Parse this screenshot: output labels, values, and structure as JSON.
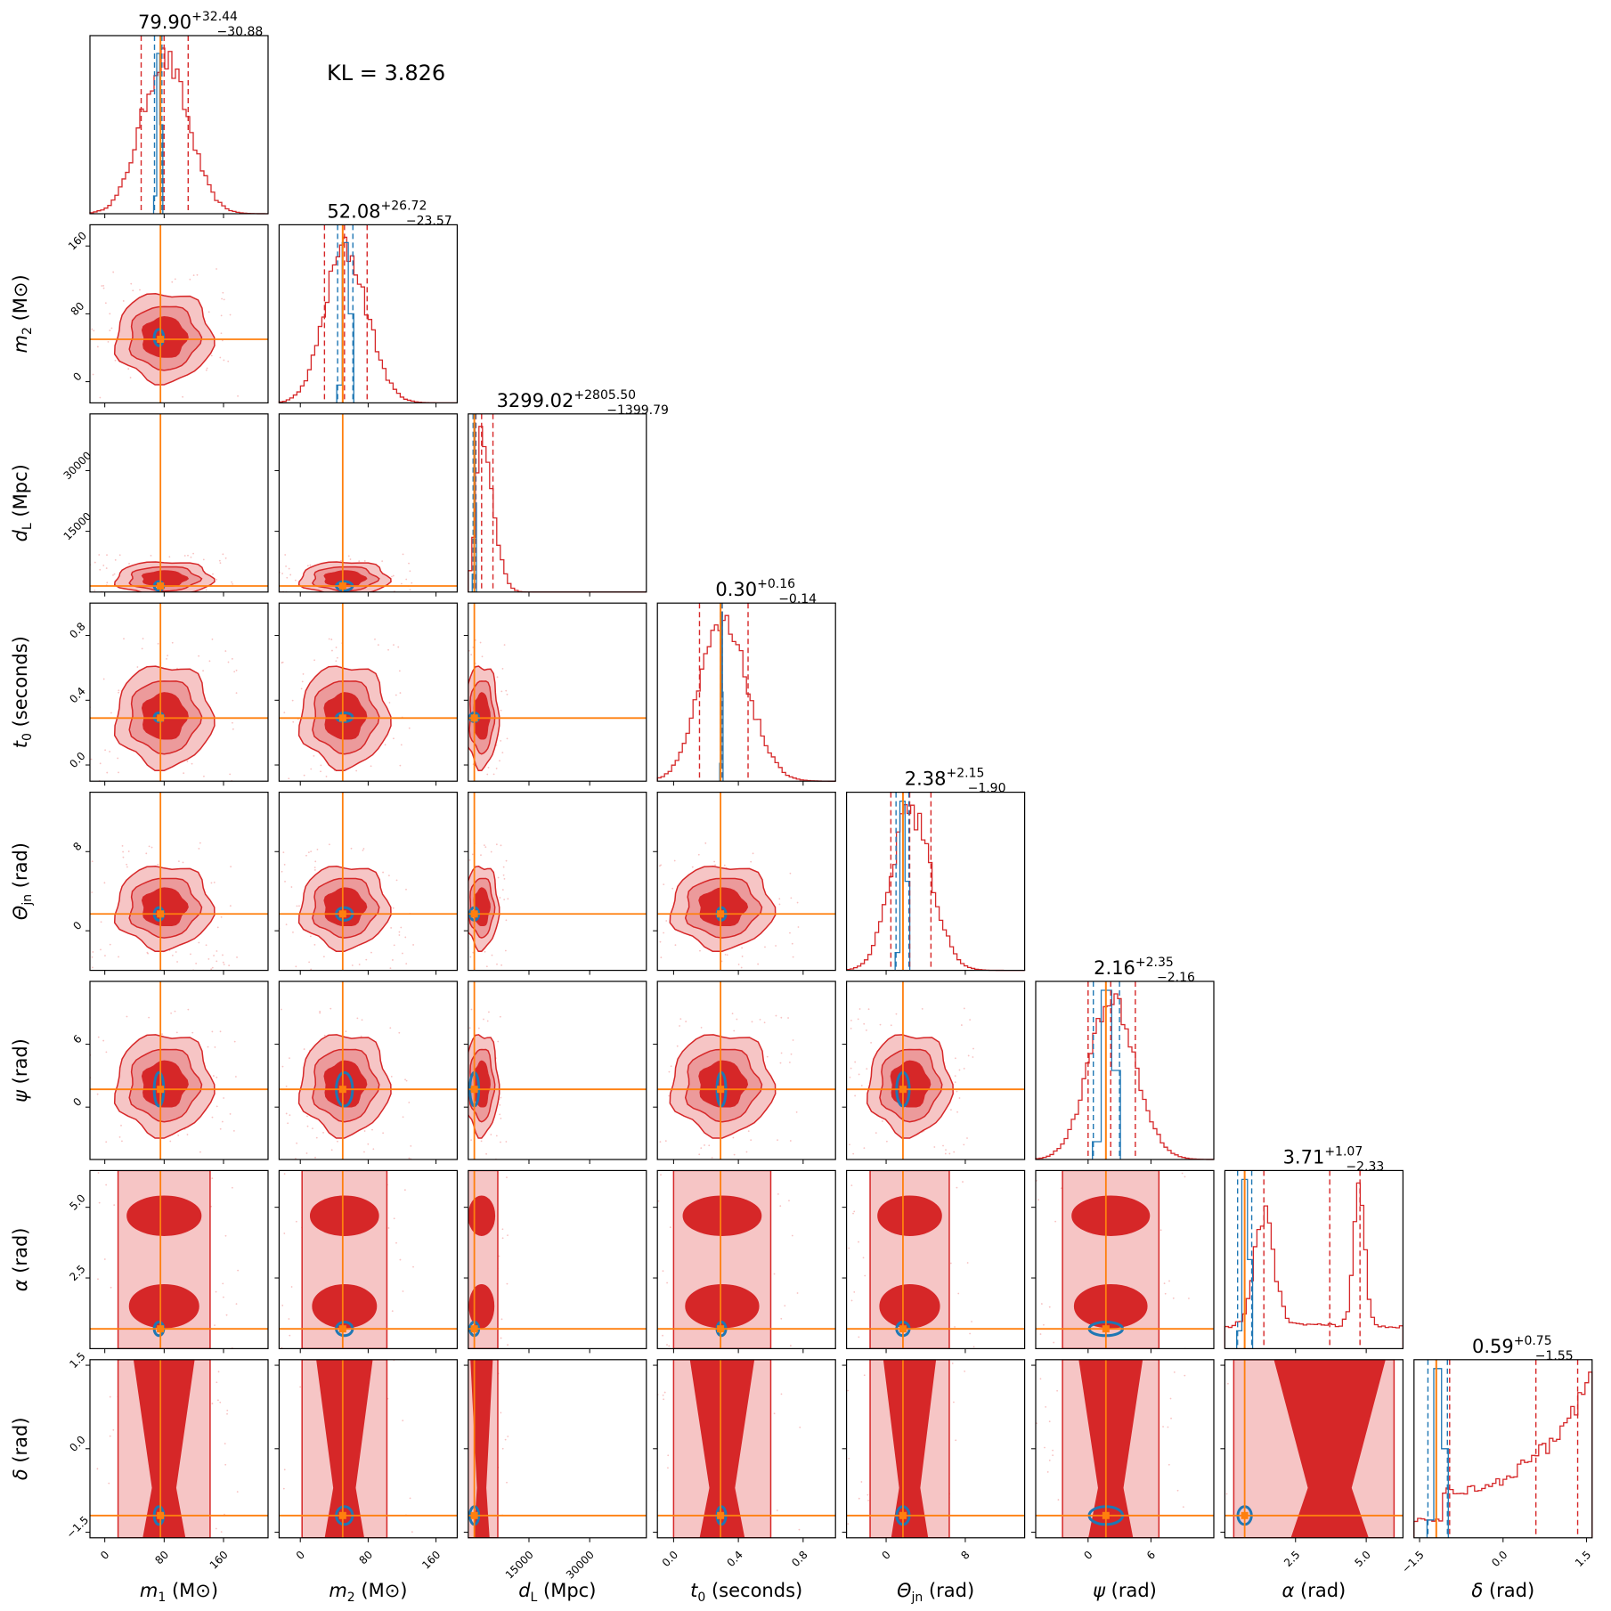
{
  "chart_data": {
    "type": "corner",
    "kl_annotation": "KL = 3.826",
    "colors": {
      "posterior_a": "#d62728",
      "posterior_b": "#1f77b4",
      "truth": "#ff7f0e"
    },
    "parameters": [
      {
        "key": "m1",
        "label_html": "m<tspan font-style='italic'></tspan>",
        "label_main": "m",
        "label_sub": "1",
        "unit": " (M⊙)",
        "title_median": "79.90",
        "title_plus": "+32.44",
        "title_minus": "−30.88",
        "range": [
          -20,
          220
        ],
        "ticks": [
          0,
          80,
          160
        ],
        "tick_labels": [
          "0",
          "80",
          "160"
        ],
        "truth": 75,
        "median_a": 79.9,
        "lo_a": 49.02,
        "hi_a": 112.34,
        "median_b": 73,
        "lo_b": 67,
        "hi_b": 77,
        "sd_a": 31,
        "sd_b": 4
      },
      {
        "key": "m2",
        "label_main": "m",
        "label_sub": "2",
        "unit": " (M⊙)",
        "title_median": "52.08",
        "title_plus": "+26.72",
        "title_minus": "−23.57",
        "range": [
          -25,
          185
        ],
        "ticks": [
          0,
          80,
          160
        ],
        "tick_labels": [
          "0",
          "80",
          "160"
        ],
        "truth": 50,
        "median_a": 52.08,
        "lo_a": 28.51,
        "hi_a": 78.8,
        "median_b": 52,
        "lo_b": 44,
        "hi_b": 62,
        "sd_a": 25,
        "sd_b": 6
      },
      {
        "key": "dL",
        "label_main": "d",
        "label_sub": "L",
        "unit": " (Mpc)",
        "title_median": "3299.02",
        "title_plus": "+2805.50",
        "title_minus": "−1399.79",
        "range": [
          0,
          44000
        ],
        "ticks": [
          15000,
          30000
        ],
        "tick_labels": [
          "15000",
          "30000"
        ],
        "truth": 1500,
        "median_a": 3299.02,
        "lo_a": 1899.23,
        "hi_a": 6104.52,
        "median_b": 1500,
        "lo_b": 1200,
        "hi_b": 1800,
        "sd_a": 2000,
        "sd_b": 200
      },
      {
        "key": "t0",
        "label_main": "t",
        "label_sub": "0",
        "unit": " (seconds)",
        "title_median": "0.30",
        "title_plus": "+0.16",
        "title_minus": "−0.14",
        "range": [
          -0.1,
          1.0
        ],
        "ticks": [
          0.0,
          0.4,
          0.8
        ],
        "tick_labels": [
          "0.0",
          "0.4",
          "0.8"
        ],
        "truth": 0.29,
        "median_a": 0.3,
        "lo_a": 0.16,
        "hi_a": 0.46,
        "median_b": 0.295,
        "lo_b": 0.29,
        "hi_b": 0.3,
        "sd_a": 0.15,
        "sd_b": 0.005
      },
      {
        "key": "thetajn",
        "label_main": "Θ",
        "label_sub": "jn",
        "unit": " (rad)",
        "title_median": "2.38",
        "title_plus": "+2.15",
        "title_minus": "−1.90",
        "range": [
          -4,
          14
        ],
        "ticks": [
          0,
          8
        ],
        "tick_labels": [
          "0",
          "8"
        ],
        "truth": 1.7,
        "median_a": 2.38,
        "lo_a": 0.48,
        "hi_a": 4.53,
        "median_b": 1.7,
        "lo_b": 1.0,
        "hi_b": 2.3,
        "sd_a": 2,
        "sd_b": 0.4
      },
      {
        "key": "psi",
        "label_main": "ψ",
        "label_sub": "",
        "unit": " (rad)",
        "title_median": "2.16",
        "title_plus": "+2.35",
        "title_minus": "−2.16",
        "range": [
          -5,
          12
        ],
        "ticks": [
          0,
          6
        ],
        "tick_labels": [
          "0",
          "6"
        ],
        "truth": 1.7,
        "median_a": 2.16,
        "lo_a": 0.0,
        "hi_a": 4.51,
        "median_b": 1.7,
        "lo_b": 0.5,
        "hi_b": 3.0,
        "sd_a": 2.3,
        "sd_b": 1.0
      },
      {
        "key": "alpha",
        "label_main": "α",
        "label_sub": "",
        "unit": " (rad)",
        "title_median": "3.71",
        "title_plus": "+1.07",
        "title_minus": "−2.33",
        "range": [
          0,
          6.3
        ],
        "ticks": [
          2.5,
          5.0
        ],
        "tick_labels": [
          "2.5",
          "5.0"
        ],
        "truth": 0.7,
        "median_a": 3.71,
        "lo_a": 1.38,
        "hi_a": 4.78,
        "median_b": 0.7,
        "lo_b": 0.45,
        "hi_b": 0.95,
        "sd_a": 1.5,
        "sd_b": 0.15
      },
      {
        "key": "delta",
        "label_main": "δ",
        "label_sub": "",
        "unit": " (rad)",
        "title_median": "0.59",
        "title_plus": "+0.75",
        "title_minus": "−1.55",
        "range": [
          -1.6,
          1.6
        ],
        "ticks": [
          -1.5,
          0.0,
          1.5
        ],
        "tick_labels": [
          "−1.5",
          "0.0",
          "1.5"
        ],
        "truth": -1.2,
        "median_a": 0.59,
        "lo_a": -0.96,
        "hi_a": 1.34,
        "median_b": -1.2,
        "lo_b": -1.35,
        "hi_b": -1.0,
        "sd_a": 0.8,
        "sd_b": 0.1
      }
    ]
  }
}
